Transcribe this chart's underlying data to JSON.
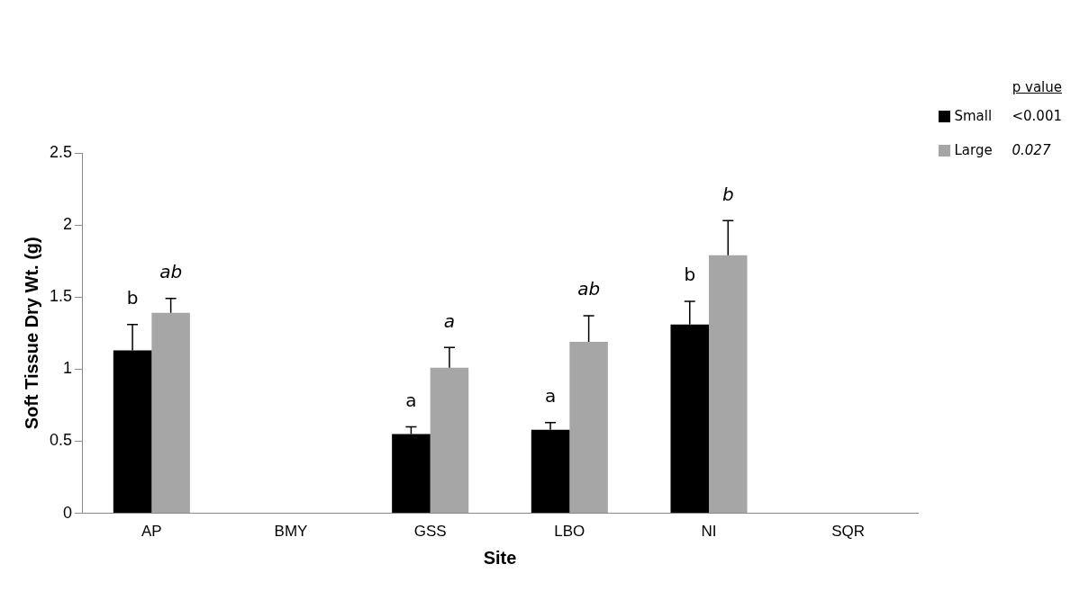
{
  "chart_data": {
    "type": "bar",
    "xlabel": "Site",
    "ylabel": "Soft Tissue Dry Wt. (g)",
    "categories": [
      "AP",
      "BMY",
      "GSS",
      "LBO",
      "NI",
      "SQR"
    ],
    "series": [
      {
        "name": "Small",
        "color": "#000000",
        "values": [
          1.13,
          null,
          0.55,
          0.58,
          1.31,
          null
        ],
        "errors": [
          0.18,
          null,
          0.05,
          0.05,
          0.16,
          null
        ]
      },
      {
        "name": "Large",
        "color": "#a6a6a6",
        "values": [
          1.39,
          null,
          1.01,
          1.19,
          1.79,
          null
        ],
        "errors": [
          0.1,
          null,
          0.14,
          0.18,
          0.24,
          null
        ]
      }
    ],
    "ylim": [
      0,
      2.5
    ],
    "yticks": [
      0,
      0.5,
      1,
      1.5,
      2,
      2.5
    ],
    "grid": false,
    "legend": "top right",
    "annotations": [
      "p value",
      "<0.001",
      "0.027",
      "b",
      "ab",
      "a",
      "a",
      "a",
      "ab",
      "b",
      "b"
    ]
  }
}
